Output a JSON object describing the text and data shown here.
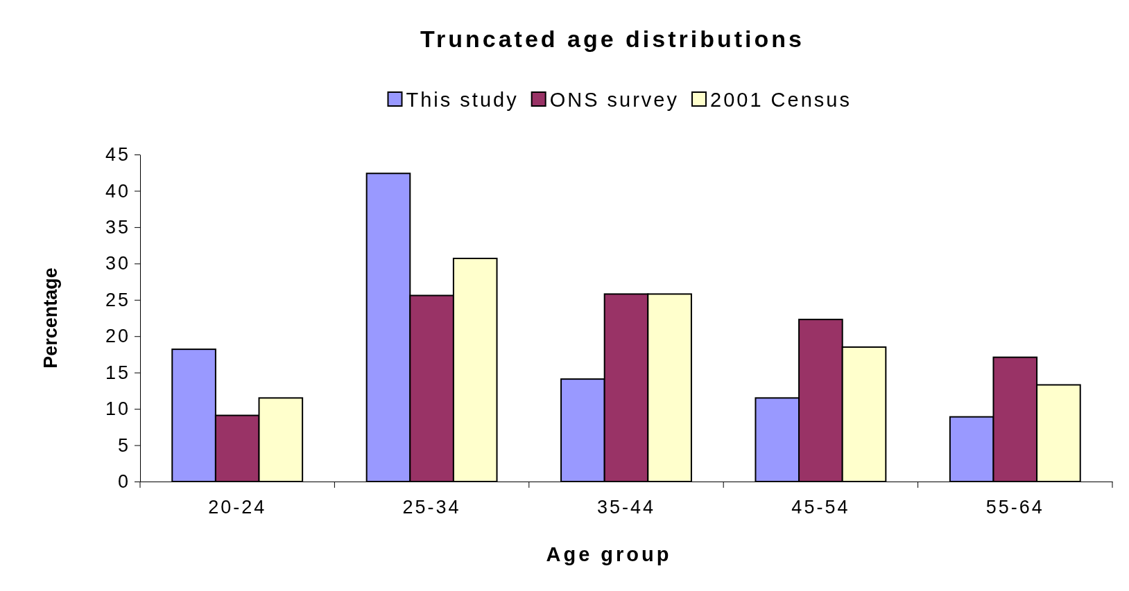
{
  "chart_data": {
    "type": "bar",
    "title": "Truncated age distributions",
    "xlabel": "Age group",
    "ylabel": "Percentage",
    "categories": [
      "20-24",
      "25-34",
      "35-44",
      "45-54",
      "55-64"
    ],
    "series": [
      {
        "name": "This study",
        "color": "#9999ff",
        "values": [
          18.2,
          42.4,
          14.1,
          11.5,
          8.9
        ]
      },
      {
        "name": "ONS survey",
        "color": "#993366",
        "values": [
          9.1,
          25.6,
          25.8,
          22.3,
          17.1
        ]
      },
      {
        "name": "2001 Census",
        "color": "#ffffcc",
        "values": [
          11.5,
          30.7,
          25.8,
          18.5,
          13.3
        ]
      }
    ],
    "ylim": [
      0,
      45
    ],
    "yticks": [
      0,
      5,
      10,
      15,
      20,
      25,
      30,
      35,
      40,
      45
    ],
    "grid": false,
    "legend": "top"
  }
}
